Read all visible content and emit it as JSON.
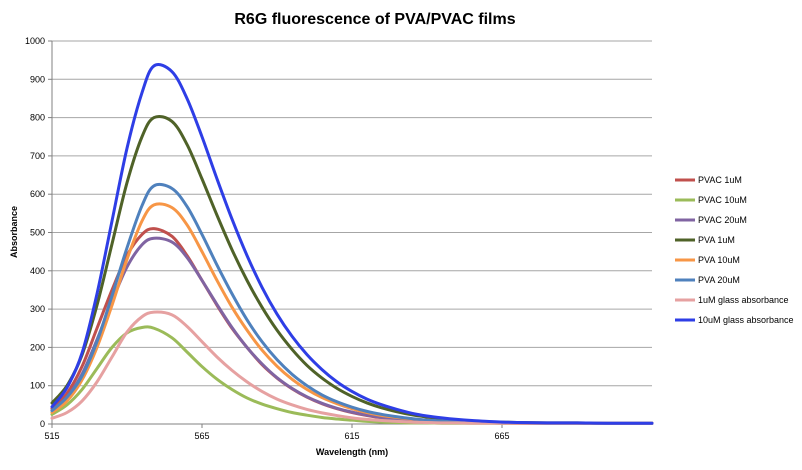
{
  "chart_data": {
    "type": "line",
    "title": "R6G fluorescence of PVA/PVAC films",
    "xlabel": "Wavelength (nm)",
    "ylabel": "Absorbance",
    "xlim": [
      515,
      715
    ],
    "ylim": [
      0,
      1000
    ],
    "x_ticks": [
      515,
      565,
      615,
      665
    ],
    "y_ticks": [
      0,
      100,
      200,
      300,
      400,
      500,
      600,
      700,
      800,
      900,
      1000
    ],
    "grid": true,
    "legend_position": "right",
    "x": [
      515,
      520,
      525,
      530,
      535,
      540,
      545,
      549,
      555,
      560,
      565,
      570,
      575,
      580,
      585,
      590,
      595,
      600,
      605,
      610,
      615,
      620,
      625,
      630,
      635,
      640,
      645,
      650,
      655,
      660,
      665,
      670,
      680,
      690,
      700,
      715
    ],
    "series": [
      {
        "name": "PVAC 1uM",
        "color": "#c0504d",
        "values": [
          40,
          80,
          150,
          250,
          350,
          440,
          495,
          510,
          490,
          440,
          375,
          310,
          250,
          200,
          155,
          120,
          92,
          70,
          53,
          40,
          30,
          22,
          16,
          12,
          9,
          7,
          5,
          4,
          3,
          3,
          2,
          2,
          2,
          2,
          2,
          2
        ]
      },
      {
        "name": "PVAC 10uM",
        "color": "#9bbb59",
        "values": [
          25,
          50,
          90,
          145,
          200,
          238,
          252,
          250,
          225,
          188,
          150,
          117,
          90,
          68,
          52,
          40,
          30,
          23,
          17,
          13,
          10,
          7,
          5,
          4,
          3,
          3,
          2,
          2,
          2,
          2,
          2,
          2,
          2,
          2,
          2,
          2
        ]
      },
      {
        "name": "PVAC 20uM",
        "color": "#8064a2",
        "values": [
          35,
          70,
          130,
          220,
          320,
          410,
          468,
          485,
          475,
          435,
          375,
          312,
          252,
          200,
          157,
          121,
          93,
          71,
          54,
          41,
          31,
          23,
          17,
          13,
          10,
          8,
          6,
          5,
          4,
          3,
          3,
          2,
          2,
          2,
          2,
          2
        ]
      },
      {
        "name": "PVA 1uM",
        "color": "#4f6228",
        "values": [
          55,
          100,
          180,
          310,
          470,
          630,
          750,
          800,
          790,
          730,
          640,
          545,
          455,
          375,
          305,
          245,
          195,
          153,
          120,
          93,
          72,
          55,
          42,
          32,
          24,
          18,
          13,
          10,
          8,
          6,
          5,
          4,
          3,
          3,
          2,
          2
        ]
      },
      {
        "name": "PVA 10uM",
        "color": "#f79646",
        "values": [
          30,
          60,
          115,
          200,
          310,
          430,
          530,
          572,
          565,
          520,
          450,
          375,
          305,
          245,
          193,
          151,
          117,
          90,
          69,
          53,
          40,
          30,
          22,
          17,
          13,
          10,
          7,
          5,
          4,
          3,
          3,
          2,
          2,
          2,
          2,
          2
        ]
      },
      {
        "name": "PVA 20uM",
        "color": "#4f81bd",
        "values": [
          35,
          70,
          125,
          215,
          335,
          460,
          570,
          622,
          615,
          568,
          495,
          415,
          340,
          272,
          215,
          168,
          130,
          100,
          76,
          58,
          44,
          33,
          25,
          19,
          14,
          10,
          8,
          6,
          5,
          4,
          3,
          3,
          2,
          2,
          2,
          2
        ]
      },
      {
        "name": "1uM glass absorbance",
        "color": "#e6a1a1",
        "values": [
          15,
          30,
          60,
          110,
          175,
          240,
          280,
          292,
          285,
          255,
          215,
          175,
          140,
          110,
          85,
          65,
          50,
          38,
          29,
          22,
          16,
          12,
          9,
          7,
          5,
          4,
          3,
          3,
          2,
          2,
          2,
          2,
          2,
          2,
          2,
          2
        ]
      },
      {
        "name": "10uM glass absorbance",
        "color": "#2e3ee6",
        "values": [
          45,
          95,
          185,
          340,
          530,
          720,
          865,
          935,
          920,
          850,
          750,
          640,
          535,
          440,
          357,
          287,
          229,
          181,
          142,
          110,
          85,
          65,
          50,
          38,
          28,
          21,
          16,
          12,
          9,
          7,
          5,
          4,
          3,
          3,
          2,
          2
        ]
      }
    ]
  }
}
